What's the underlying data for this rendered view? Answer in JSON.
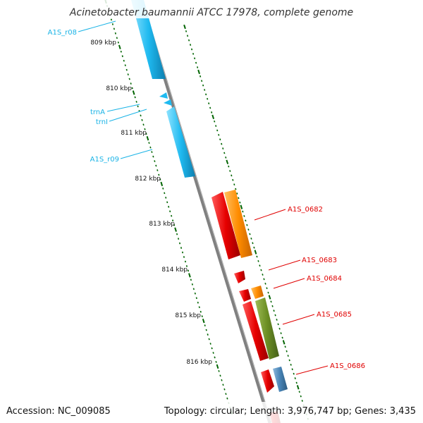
{
  "title": "Acinetobacter baumannii ATCC 17978, complete genome",
  "footer": {
    "accession": "Accession: NC_009085",
    "summary": "Topology: circular; Length: 3,976,747 bp; Genes: 3,435"
  },
  "scale": [
    "809 kbp",
    "810 kbp",
    "811 kbp",
    "812 kbp",
    "813 kbp",
    "814 kbp",
    "815 kbp",
    "816 kbp"
  ],
  "labels": {
    "rna": [
      "A1S_r08",
      "trnA",
      "trnI",
      "A1S_r09"
    ],
    "cds": [
      "A1S_0682",
      "A1S_0683",
      "A1S_0684",
      "A1S_0685",
      "A1S_0686"
    ]
  },
  "colors": {
    "rna": "#19b3e6",
    "cds_red": "#e00000",
    "orange": "#ff8c00",
    "olive": "#6b8e23",
    "steel": "#4682b4",
    "backbone": "#808080",
    "tick": "#006400"
  }
}
